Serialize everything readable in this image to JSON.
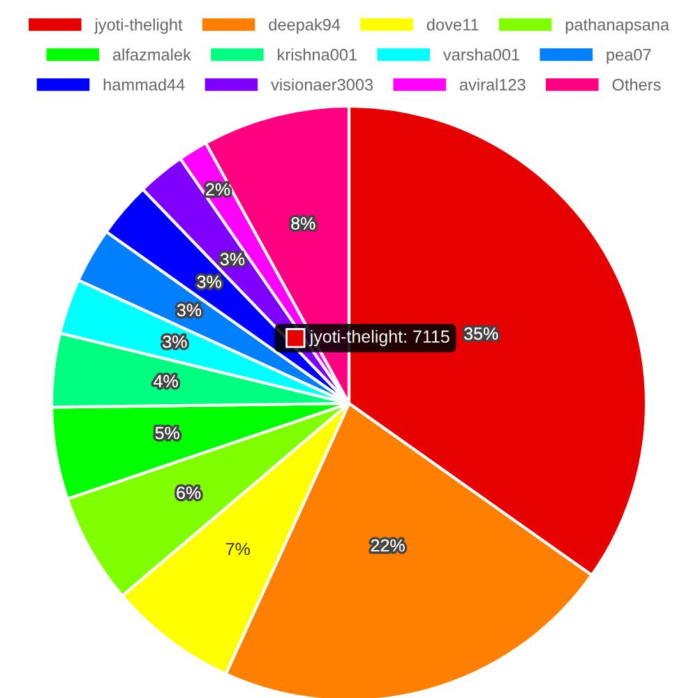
{
  "chart_data": {
    "type": "pie",
    "categories": [
      "jyoti-thelight",
      "deepak94",
      "dove11",
      "pathanapsana",
      "alfazmalek",
      "krishna001",
      "varsha001",
      "pea07",
      "hammad44",
      "visionaer3003",
      "aviral123",
      "Others"
    ],
    "values": [
      34.8,
      22,
      7,
      6,
      5,
      4,
      3,
      3,
      3,
      2.6,
      1.6,
      8
    ],
    "value_labels": [
      "35%",
      "22%",
      "7%",
      "6%",
      "5%",
      "4%",
      "3%",
      "3%",
      "3%",
      "3%",
      "2%",
      "8%"
    ],
    "colors": [
      "#e60000",
      "#ff8000",
      "#ffff00",
      "#80ff00",
      "#00ff00",
      "#00ff80",
      "#00ffff",
      "#0080ff",
      "#0000ff",
      "#8000ff",
      "#ff00ff",
      "#ff0080"
    ],
    "legend": "top",
    "annotations": [
      "jyoti-thelight: 7115"
    ]
  }
}
